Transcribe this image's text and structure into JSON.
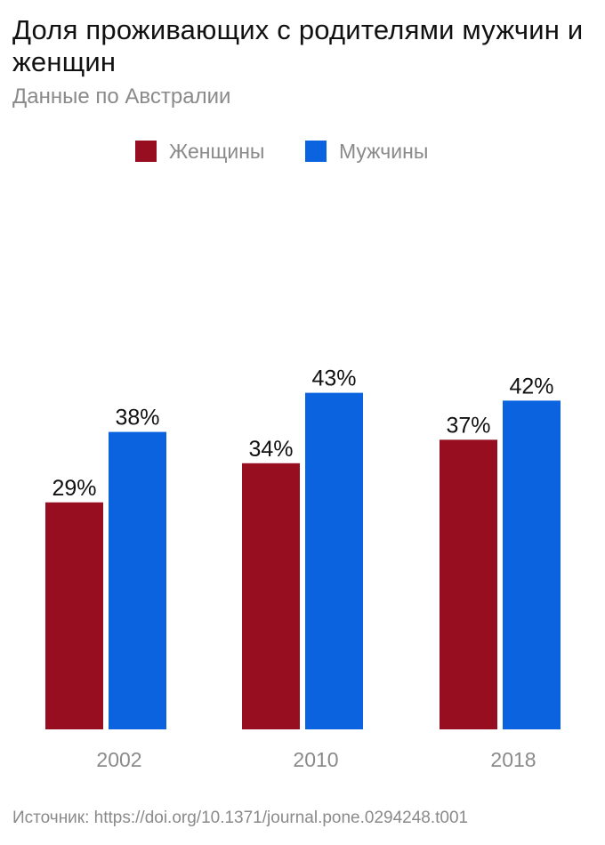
{
  "chart_data": {
    "type": "bar",
    "title": "Доля проживающих с родителями мужчин и женщин",
    "subtitle": "Данные по Австралии",
    "categories": [
      "2002",
      "2010",
      "2018"
    ],
    "series": [
      {
        "name": "Женщины",
        "values": [
          29,
          34,
          37
        ],
        "labels": [
          "29%",
          "34%",
          "37%"
        ],
        "color": "#970e21"
      },
      {
        "name": "Мужчины",
        "values": [
          38,
          43,
          42
        ],
        "labels": [
          "38%",
          "43%",
          "42%"
        ],
        "color": "#0b63df"
      }
    ],
    "ylim": [
      0,
      45
    ],
    "grid": false,
    "legend_position": "top"
  },
  "source": "Источник: https://doi.org/10.1371/journal.pone.0294248.t001"
}
